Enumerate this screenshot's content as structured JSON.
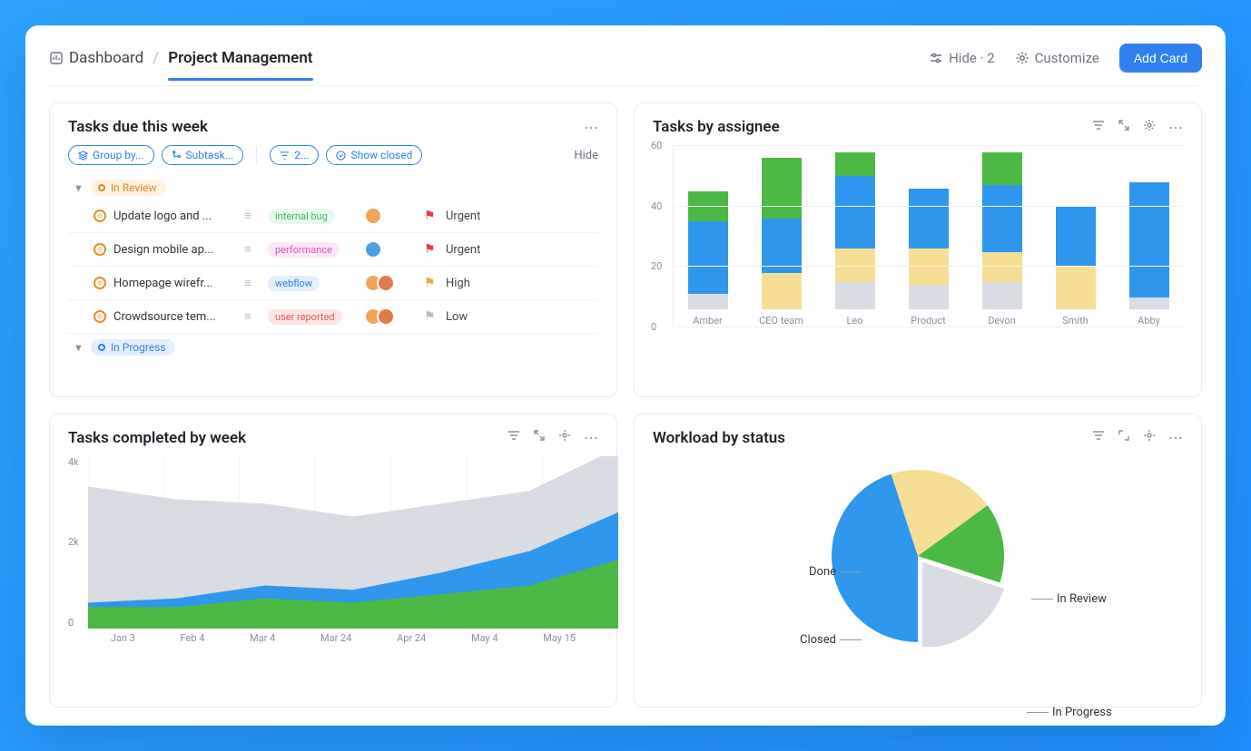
{
  "header": {
    "breadcrumb_root": "Dashboard",
    "breadcrumb_current": "Project Management",
    "hide_label": "Hide · 2",
    "customize_label": "Customize",
    "add_card_label": "Add Card"
  },
  "tasks_card": {
    "title": "Tasks due this week",
    "filters": {
      "group_by": "Group by...",
      "subtask": "Subtask...",
      "count": "2...",
      "show_closed": "Show closed",
      "hide": "Hide"
    },
    "groups": [
      {
        "name": "In Review",
        "chip_bg": "#fff2de",
        "chip_color": "#d6892c",
        "tasks": [
          {
            "name": "Update logo and ...",
            "tag": "internal bug",
            "tag_bg": "#e9f8ee",
            "tag_color": "#45b26b",
            "avatars": [
              "#f3a45a"
            ],
            "flag_color": "#e03e3e",
            "priority": "Urgent"
          },
          {
            "name": "Design mobile ap...",
            "tag": "performance",
            "tag_bg": "#fde8f7",
            "tag_color": "#e04ec7",
            "avatars": [
              "#4aa3e0"
            ],
            "flag_color": "#e03e3e",
            "priority": "Urgent"
          },
          {
            "name": "Homepage wirefr...",
            "tag": "webflow",
            "tag_bg": "#e4eefc",
            "tag_color": "#2f80ed",
            "avatars": [
              "#f3a45a",
              "#e07b4a"
            ],
            "flag_color": "#f2a93b",
            "priority": "High"
          },
          {
            "name": "Crowdsource tem...",
            "tag": "user reported",
            "tag_bg": "#fde6e6",
            "tag_color": "#e05a5a",
            "avatars": [
              "#f3a45a",
              "#e07b4a"
            ],
            "flag_color": "#b5bbc6",
            "priority": "Low"
          }
        ]
      },
      {
        "name": "In Progress",
        "chip_bg": "#e4eefc",
        "chip_color": "#2f80ed",
        "tasks": []
      }
    ]
  },
  "assignee_chart": {
    "title": "Tasks by assignee",
    "ymax": 60,
    "ytick_step": 20,
    "categories": [
      "Amber",
      "CEO team",
      "Leo",
      "Product",
      "Devon",
      "Smith",
      "Abby"
    ],
    "stack_colors": [
      "#d9dde3",
      "#f6df94",
      "#2f97ed",
      "#4cb944"
    ],
    "stacks": [
      [
        5,
        0,
        24,
        10
      ],
      [
        0,
        12,
        18,
        20
      ],
      [
        9,
        11,
        24,
        8
      ],
      [
        8,
        12,
        20,
        0
      ],
      [
        9,
        10,
        22,
        11
      ],
      [
        0,
        14,
        20,
        0
      ],
      [
        4,
        0,
        38,
        0
      ]
    ]
  },
  "completed_chart": {
    "title": "Tasks completed by week",
    "ymax": 4000,
    "ylabels": [
      "4k",
      "2k",
      "0"
    ],
    "xlabels": [
      "Jan 3",
      "Feb 4",
      "Mar 4",
      "Mar 24",
      "Apr 24",
      "May 4",
      "May 15"
    ],
    "series": [
      {
        "color": "#d9dde3",
        "values": [
          3300,
          3000,
          2900,
          2600,
          2900,
          3200,
          4200
        ]
      },
      {
        "color": "#2f97ed",
        "values": [
          600,
          700,
          1000,
          900,
          1300,
          1800,
          2700
        ]
      },
      {
        "color": "#4cb944",
        "values": [
          500,
          500,
          700,
          600,
          800,
          1000,
          1600
        ]
      }
    ]
  },
  "workload_chart": {
    "title": "Workload by status",
    "slices": [
      {
        "label": "In Progress",
        "value": 45,
        "color": "#2f97ed"
      },
      {
        "label": "In Review",
        "value": 20,
        "color": "#f6df94"
      },
      {
        "label": "Done",
        "value": 15,
        "color": "#4cb944"
      },
      {
        "label": "Closed",
        "value": 20,
        "color": "#d9dde3"
      }
    ]
  }
}
